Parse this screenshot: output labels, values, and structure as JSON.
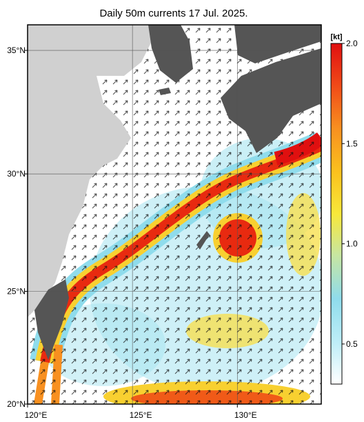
{
  "map": {
    "title": "Daily 50m currents 17 Jul. 2025.",
    "xlim": [
      120,
      134
    ],
    "ylim": [
      20,
      36
    ],
    "xticks": [
      {
        "value": 120,
        "label": "120°E"
      },
      {
        "value": 125,
        "label": "125°E"
      },
      {
        "value": 130,
        "label": "130°E"
      }
    ],
    "yticks": [
      {
        "value": 20,
        "label": "20°N"
      },
      {
        "value": 25,
        "label": "25°N"
      },
      {
        "value": 30,
        "label": "30°N"
      },
      {
        "value": 35,
        "label": "35°N"
      }
    ],
    "colorbar": {
      "unit": "[kt]",
      "range": [
        0.3,
        2.0
      ],
      "ticks": [
        0.5,
        {
          "value": 1.0,
          "label": "1.0"
        },
        1.5,
        {
          "value": 2.0,
          "label": "2.0"
        }
      ]
    }
  }
}
